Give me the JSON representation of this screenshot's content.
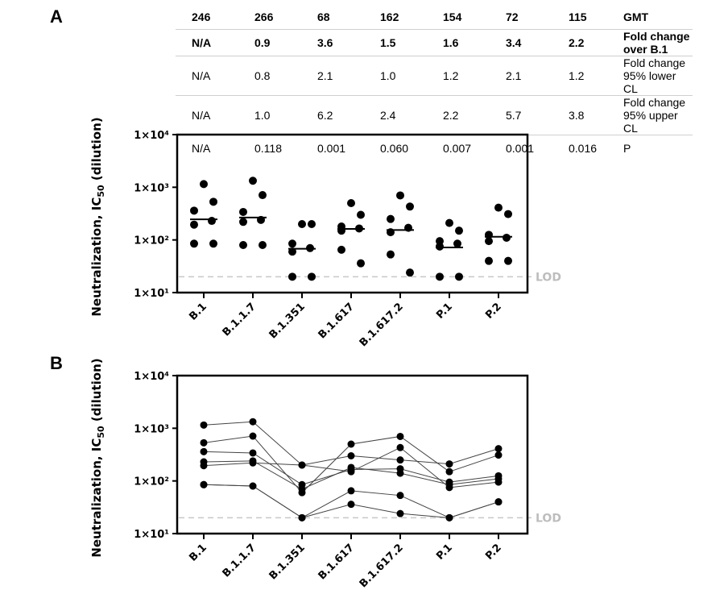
{
  "panels": {
    "a_letter": "A",
    "b_letter": "B"
  },
  "table": {
    "rows": [
      {
        "values": [
          "246",
          "266",
          "68",
          "162",
          "154",
          "72",
          "115"
        ],
        "label": "GMT",
        "bold": true
      },
      {
        "values": [
          "N/A",
          "0.9",
          "3.6",
          "1.5",
          "1.6",
          "3.4",
          "2.2"
        ],
        "label": "Fold change over B.1",
        "bold": true
      },
      {
        "values": [
          "N/A",
          "0.8",
          "2.1",
          "1.0",
          "1.2",
          "2.1",
          "1.2"
        ],
        "label": "Fold change 95% lower CL",
        "bold": false
      },
      {
        "values": [
          "N/A",
          "1.0",
          "6.2",
          "2.4",
          "2.2",
          "5.7",
          "3.8"
        ],
        "label": "Fold change 95% upper CL",
        "bold": false
      },
      {
        "values": [
          "N/A",
          "0.118",
          "0.001",
          "0.060",
          "0.007",
          "0.001",
          "0.016"
        ],
        "label": "P",
        "bold": false
      }
    ]
  },
  "chart_data": [
    {
      "type": "scatter",
      "panel": "A",
      "categories": [
        "B.1",
        "B.1.1.7",
        "B.1.351",
        "B.1.617",
        "B.1.617.2",
        "P.1",
        "P.2"
      ],
      "ylabel_main": "Neutralization, IC",
      "ylabel_sub": "50",
      "ylabel_tail": " (dilution)",
      "yscale": "log",
      "ylim": [
        10,
        10000
      ],
      "ytick_labels": [
        "1×10¹",
        "1×10²",
        "1×10³",
        "1×10⁴"
      ],
      "lod_value": 20,
      "lod_label": "LOD",
      "points": [
        [
          1150,
          530,
          360,
          230,
          195,
          85,
          85
        ],
        [
          1330,
          710,
          340,
          240,
          220,
          80,
          80
        ],
        [
          200,
          200,
          85,
          70,
          60,
          20,
          20
        ],
        [
          500,
          300,
          180,
          165,
          150,
          65,
          36
        ],
        [
          700,
          430,
          250,
          170,
          140,
          53,
          24
        ],
        [
          210,
          150,
          95,
          85,
          75,
          20,
          20
        ],
        [
          410,
          310,
          125,
          110,
          95,
          40,
          40
        ]
      ],
      "gmt": [
        246,
        266,
        68,
        162,
        154,
        72,
        115
      ]
    },
    {
      "type": "line",
      "panel": "B",
      "categories": [
        "B.1",
        "B.1.1.7",
        "B.1.351",
        "B.1.617",
        "B.1.617.2",
        "P.1",
        "P.2"
      ],
      "ylabel_main": "Neutralization, IC",
      "ylabel_sub": "50",
      "ylabel_tail": " (dilution)",
      "yscale": "log",
      "ylim": [
        10,
        10000
      ],
      "ytick_labels": [
        "1×10¹",
        "1×10²",
        "1×10³",
        "1×10⁴"
      ],
      "lod_value": 20,
      "lod_label": "LOD",
      "series": [
        {
          "values": [
            1150,
            1330,
            200,
            300,
            250,
            210,
            410
          ]
        },
        {
          "values": [
            530,
            710,
            60,
            500,
            700,
            150,
            310
          ]
        },
        {
          "values": [
            360,
            340,
            85,
            165,
            170,
            95,
            125
          ]
        },
        {
          "values": [
            230,
            240,
            70,
            180,
            140,
            85,
            110
          ]
        },
        {
          "values": [
            195,
            220,
            200,
            150,
            430,
            75,
            95
          ]
        },
        {
          "values": [
            85,
            80,
            20,
            65,
            53,
            20,
            40
          ]
        },
        {
          "values": [
            85,
            80,
            20,
            36,
            24,
            20,
            40
          ]
        }
      ]
    }
  ]
}
